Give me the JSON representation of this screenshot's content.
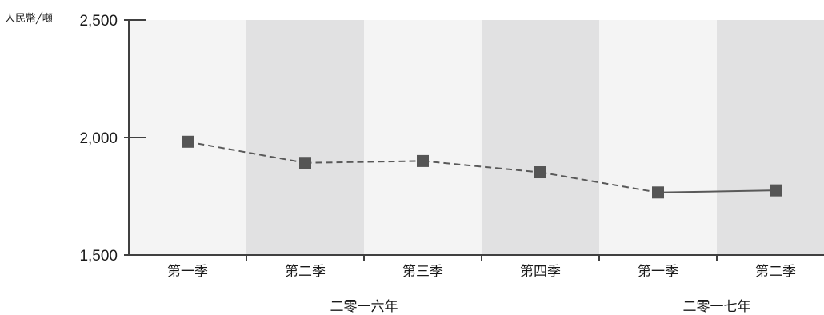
{
  "chart_data": {
    "type": "line",
    "unit_label": "人民幣╱噸",
    "ylim": [
      1500,
      2500
    ],
    "y_ticks": [
      "2,500",
      "2,000",
      "1,500"
    ],
    "y_tick_values": [
      2500,
      2000,
      1500
    ],
    "categories": [
      "第一季",
      "第二季",
      "第三季",
      "第四季",
      "第一季",
      "第二季"
    ],
    "groups": [
      {
        "label": "二零一六年",
        "categories": [
          0,
          1,
          2,
          3
        ]
      },
      {
        "label": "二零一七年",
        "categories": [
          4,
          5
        ]
      }
    ],
    "values": [
      1982,
      1892,
      1900,
      1852,
      1766,
      1775
    ],
    "dashed_segment_until_index": 4,
    "grid": false,
    "legend": "none",
    "colors": {
      "band_light": "#f4f4f4",
      "band_dark": "#e1e1e2",
      "line": "#595959",
      "marker": "#555555",
      "axis": "#404040"
    }
  }
}
